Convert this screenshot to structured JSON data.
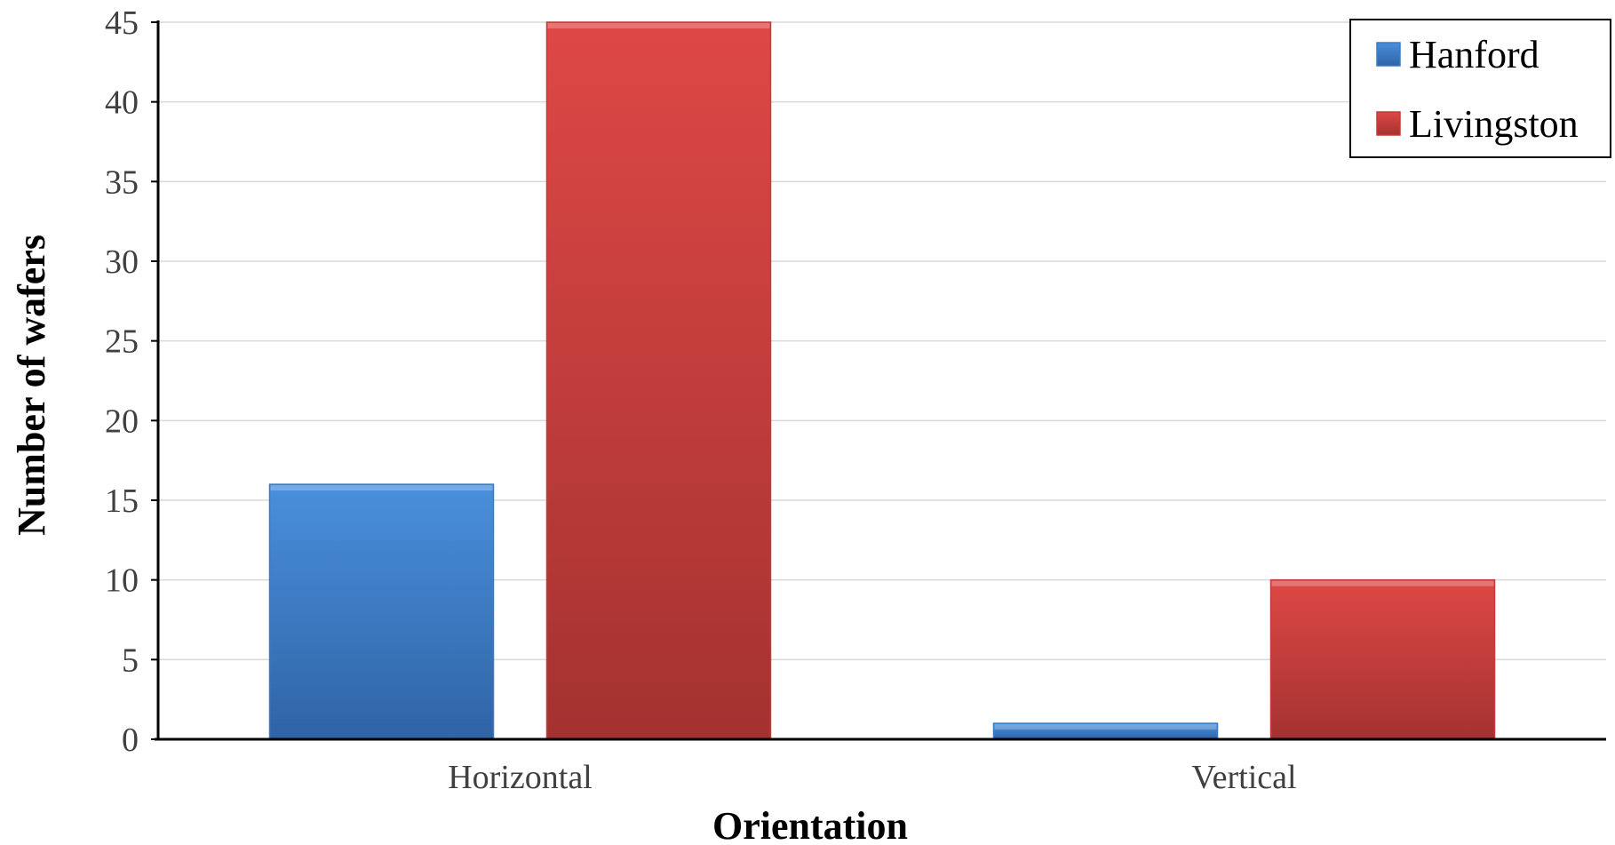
{
  "chart_data": {
    "type": "bar",
    "categories": [
      "Horizontal",
      "Vertical"
    ],
    "series": [
      {
        "name": "Hanford",
        "values": [
          16,
          1
        ],
        "color": "#3a7bc8"
      },
      {
        "name": "Livingston",
        "values": [
          45,
          10
        ],
        "color": "#c8393a"
      }
    ],
    "xlabel": "Orientation",
    "ylabel": "Number of wafers",
    "ylim": [
      0,
      45
    ],
    "yticks": [
      0,
      5,
      10,
      15,
      20,
      25,
      30,
      35,
      40,
      45
    ],
    "grid": true,
    "legend_position": "top-right"
  }
}
